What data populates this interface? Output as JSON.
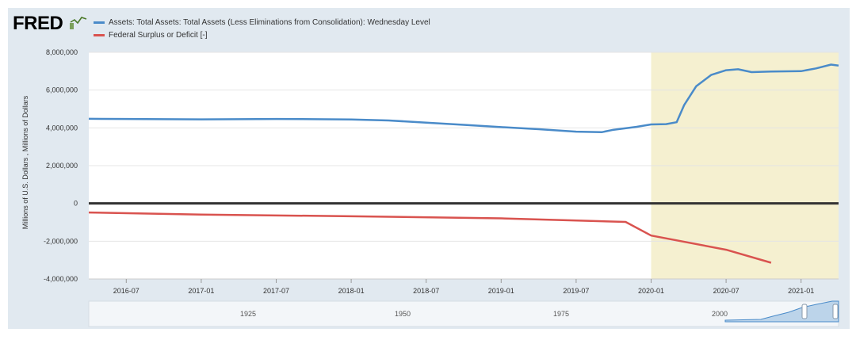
{
  "header": {
    "logo_text": "FRED"
  },
  "chart_data": {
    "type": "line",
    "ylabel": "Millions of U.S. Dollars , Millions of Dollars",
    "ylim": [
      -4000000,
      8000000
    ],
    "y_ticks": [
      8000000,
      6000000,
      4000000,
      2000000,
      0,
      -2000000,
      -4000000
    ],
    "y_tick_labels": [
      "8,000,000",
      "6,000,000",
      "4,000,000",
      "2,000,000",
      "0",
      "-2,000,000",
      "-4,000,000"
    ],
    "x_range": [
      2016.25,
      2021.25
    ],
    "x_tick_labels": [
      "2016-07",
      "2017-01",
      "2017-07",
      "2018-01",
      "2018-07",
      "2019-01",
      "2019-07",
      "2020-01",
      "2020-07",
      "2021-01"
    ],
    "x_tick_values": [
      2016.5,
      2017.0,
      2017.5,
      2018.0,
      2018.5,
      2019.0,
      2019.5,
      2020.0,
      2020.5,
      2021.0
    ],
    "shaded_region": {
      "start": 2020.0,
      "end": 2021.25,
      "color": "#f5f0d0"
    },
    "series": [
      {
        "name": "Assets: Total Assets: Total Assets (Less Eliminations from Consolidation): Wednesday Level",
        "color": "#4a8bc9",
        "points": [
          [
            2016.25,
            4480000
          ],
          [
            2016.5,
            4470000
          ],
          [
            2016.75,
            4460000
          ],
          [
            2017.0,
            4450000
          ],
          [
            2017.25,
            4460000
          ],
          [
            2017.5,
            4470000
          ],
          [
            2017.75,
            4460000
          ],
          [
            2018.0,
            4440000
          ],
          [
            2018.25,
            4390000
          ],
          [
            2018.5,
            4280000
          ],
          [
            2018.75,
            4160000
          ],
          [
            2019.0,
            4040000
          ],
          [
            2019.25,
            3930000
          ],
          [
            2019.5,
            3800000
          ],
          [
            2019.67,
            3770000
          ],
          [
            2019.75,
            3900000
          ],
          [
            2019.9,
            4050000
          ],
          [
            2020.0,
            4180000
          ],
          [
            2020.1,
            4200000
          ],
          [
            2020.17,
            4300000
          ],
          [
            2020.22,
            5200000
          ],
          [
            2020.3,
            6200000
          ],
          [
            2020.4,
            6800000
          ],
          [
            2020.5,
            7050000
          ],
          [
            2020.58,
            7100000
          ],
          [
            2020.67,
            6950000
          ],
          [
            2020.8,
            6980000
          ],
          [
            2021.0,
            7000000
          ],
          [
            2021.1,
            7150000
          ],
          [
            2021.2,
            7350000
          ],
          [
            2021.25,
            7300000
          ]
        ]
      },
      {
        "name": "Federal Surplus or Deficit [-]",
        "color": "#d9534f",
        "points": [
          [
            2016.25,
            -480000
          ],
          [
            2017.0,
            -590000
          ],
          [
            2018.0,
            -680000
          ],
          [
            2019.0,
            -790000
          ],
          [
            2019.83,
            -980000
          ],
          [
            2020.0,
            -1700000
          ],
          [
            2020.5,
            -2450000
          ],
          [
            2020.8,
            -3140000
          ]
        ]
      }
    ],
    "navigator": {
      "labels": [
        "1925",
        "1950",
        "1975",
        "2000"
      ]
    }
  }
}
